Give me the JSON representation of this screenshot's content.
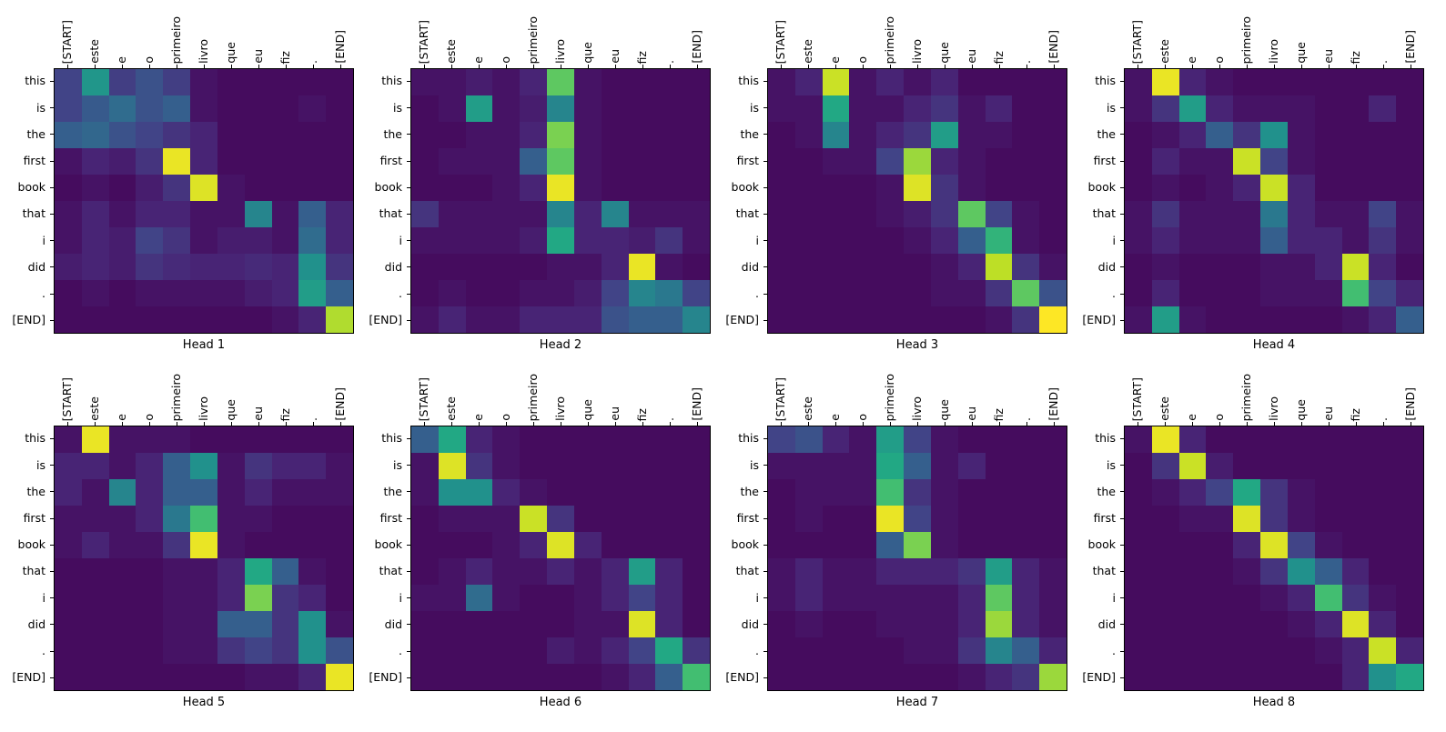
{
  "figure": {
    "x_labels": [
      "[START]",
      "este",
      "e",
      "o",
      "primeiro",
      "livro",
      "que",
      "eu",
      "fiz",
      ".",
      "[END]"
    ],
    "y_labels": [
      "this",
      "is",
      "the",
      "first",
      "book",
      "that",
      "i",
      "did",
      ".",
      "[END]"
    ],
    "colormap": "viridis",
    "colormap_stops": [
      "#440154",
      "#482475",
      "#414487",
      "#355f8d",
      "#2a788e",
      "#21918c",
      "#22a884",
      "#42be71",
      "#7ad151",
      "#bddf26",
      "#fde725"
    ]
  },
  "chart_data": [
    {
      "type": "heatmap",
      "title": "Head 1",
      "vmin": 0,
      "vmax": 1,
      "values": [
        [
          0.2,
          0.52,
          0.18,
          0.25,
          0.18,
          0.05,
          0.03,
          0.03,
          0.03,
          0.03,
          0.03
        ],
        [
          0.2,
          0.28,
          0.35,
          0.25,
          0.3,
          0.05,
          0.03,
          0.03,
          0.03,
          0.05,
          0.03
        ],
        [
          0.3,
          0.33,
          0.25,
          0.2,
          0.15,
          0.1,
          0.03,
          0.03,
          0.03,
          0.03,
          0.03
        ],
        [
          0.05,
          0.1,
          0.08,
          0.15,
          0.97,
          0.1,
          0.03,
          0.03,
          0.03,
          0.03,
          0.03
        ],
        [
          0.03,
          0.05,
          0.03,
          0.08,
          0.15,
          0.95,
          0.05,
          0.03,
          0.03,
          0.03,
          0.03
        ],
        [
          0.05,
          0.1,
          0.05,
          0.1,
          0.1,
          0.05,
          0.05,
          0.45,
          0.05,
          0.3,
          0.1
        ],
        [
          0.05,
          0.1,
          0.08,
          0.2,
          0.15,
          0.05,
          0.08,
          0.08,
          0.05,
          0.35,
          0.1
        ],
        [
          0.08,
          0.1,
          0.08,
          0.15,
          0.12,
          0.1,
          0.1,
          0.12,
          0.1,
          0.5,
          0.15
        ],
        [
          0.03,
          0.05,
          0.03,
          0.05,
          0.05,
          0.05,
          0.05,
          0.08,
          0.1,
          0.55,
          0.3
        ],
        [
          0.03,
          0.03,
          0.03,
          0.03,
          0.03,
          0.03,
          0.03,
          0.03,
          0.05,
          0.1,
          0.88
        ]
      ]
    },
    {
      "type": "heatmap",
      "title": "Head 2",
      "vmin": 0,
      "vmax": 1,
      "values": [
        [
          0.05,
          0.05,
          0.08,
          0.05,
          0.1,
          0.75,
          0.05,
          0.03,
          0.03,
          0.03,
          0.03
        ],
        [
          0.03,
          0.05,
          0.55,
          0.05,
          0.08,
          0.45,
          0.05,
          0.03,
          0.03,
          0.03,
          0.03
        ],
        [
          0.03,
          0.03,
          0.05,
          0.05,
          0.1,
          0.8,
          0.05,
          0.03,
          0.03,
          0.03,
          0.03
        ],
        [
          0.03,
          0.05,
          0.05,
          0.05,
          0.3,
          0.75,
          0.05,
          0.03,
          0.03,
          0.03,
          0.03
        ],
        [
          0.03,
          0.03,
          0.03,
          0.05,
          0.1,
          0.97,
          0.05,
          0.03,
          0.03,
          0.03,
          0.03
        ],
        [
          0.15,
          0.05,
          0.05,
          0.05,
          0.05,
          0.45,
          0.1,
          0.45,
          0.05,
          0.05,
          0.05
        ],
        [
          0.05,
          0.05,
          0.05,
          0.05,
          0.08,
          0.6,
          0.1,
          0.1,
          0.08,
          0.15,
          0.05
        ],
        [
          0.03,
          0.03,
          0.03,
          0.03,
          0.03,
          0.05,
          0.05,
          0.1,
          0.97,
          0.05,
          0.03
        ],
        [
          0.03,
          0.05,
          0.03,
          0.03,
          0.05,
          0.05,
          0.08,
          0.2,
          0.45,
          0.4,
          0.2
        ],
        [
          0.05,
          0.1,
          0.05,
          0.05,
          0.1,
          0.1,
          0.1,
          0.25,
          0.3,
          0.3,
          0.45
        ]
      ]
    },
    {
      "type": "heatmap",
      "title": "Head 3",
      "vmin": 0,
      "vmax": 1,
      "values": [
        [
          0.05,
          0.1,
          0.92,
          0.05,
          0.1,
          0.05,
          0.1,
          0.03,
          0.03,
          0.03,
          0.03
        ],
        [
          0.05,
          0.05,
          0.6,
          0.05,
          0.05,
          0.1,
          0.15,
          0.05,
          0.1,
          0.03,
          0.03
        ],
        [
          0.03,
          0.05,
          0.45,
          0.05,
          0.1,
          0.15,
          0.55,
          0.05,
          0.05,
          0.03,
          0.03
        ],
        [
          0.03,
          0.03,
          0.05,
          0.05,
          0.2,
          0.85,
          0.1,
          0.05,
          0.03,
          0.03,
          0.03
        ],
        [
          0.03,
          0.03,
          0.03,
          0.03,
          0.05,
          0.95,
          0.15,
          0.05,
          0.03,
          0.03,
          0.03
        ],
        [
          0.03,
          0.03,
          0.03,
          0.03,
          0.05,
          0.08,
          0.15,
          0.75,
          0.2,
          0.05,
          0.03
        ],
        [
          0.03,
          0.03,
          0.03,
          0.03,
          0.03,
          0.05,
          0.1,
          0.3,
          0.65,
          0.05,
          0.03
        ],
        [
          0.03,
          0.03,
          0.03,
          0.03,
          0.03,
          0.03,
          0.05,
          0.1,
          0.9,
          0.15,
          0.05
        ],
        [
          0.03,
          0.03,
          0.03,
          0.03,
          0.03,
          0.03,
          0.05,
          0.05,
          0.15,
          0.75,
          0.25
        ],
        [
          0.03,
          0.03,
          0.03,
          0.03,
          0.03,
          0.03,
          0.03,
          0.03,
          0.05,
          0.15,
          1.0
        ]
      ]
    },
    {
      "type": "heatmap",
      "title": "Head 4",
      "vmin": 0,
      "vmax": 1,
      "values": [
        [
          0.05,
          0.97,
          0.1,
          0.05,
          0.03,
          0.03,
          0.03,
          0.03,
          0.03,
          0.03,
          0.03
        ],
        [
          0.05,
          0.15,
          0.55,
          0.1,
          0.05,
          0.05,
          0.05,
          0.03,
          0.03,
          0.1,
          0.03
        ],
        [
          0.03,
          0.05,
          0.1,
          0.3,
          0.15,
          0.5,
          0.05,
          0.03,
          0.03,
          0.03,
          0.03
        ],
        [
          0.03,
          0.1,
          0.05,
          0.05,
          0.92,
          0.2,
          0.05,
          0.03,
          0.03,
          0.03,
          0.03
        ],
        [
          0.03,
          0.05,
          0.03,
          0.05,
          0.1,
          0.92,
          0.1,
          0.03,
          0.03,
          0.03,
          0.03
        ],
        [
          0.05,
          0.15,
          0.05,
          0.05,
          0.05,
          0.4,
          0.1,
          0.05,
          0.05,
          0.2,
          0.05
        ],
        [
          0.05,
          0.1,
          0.05,
          0.05,
          0.05,
          0.3,
          0.1,
          0.1,
          0.05,
          0.15,
          0.05
        ],
        [
          0.03,
          0.05,
          0.03,
          0.03,
          0.03,
          0.05,
          0.05,
          0.1,
          0.92,
          0.1,
          0.03
        ],
        [
          0.03,
          0.1,
          0.03,
          0.03,
          0.03,
          0.05,
          0.05,
          0.05,
          0.7,
          0.2,
          0.1
        ],
        [
          0.05,
          0.55,
          0.05,
          0.03,
          0.03,
          0.03,
          0.03,
          0.03,
          0.05,
          0.1,
          0.3
        ]
      ]
    },
    {
      "type": "heatmap",
      "title": "Head 5",
      "vmin": 0,
      "vmax": 1,
      "values": [
        [
          0.05,
          0.97,
          0.05,
          0.05,
          0.05,
          0.03,
          0.03,
          0.03,
          0.03,
          0.03,
          0.03
        ],
        [
          0.1,
          0.1,
          0.05,
          0.1,
          0.3,
          0.5,
          0.05,
          0.15,
          0.1,
          0.1,
          0.05
        ],
        [
          0.1,
          0.05,
          0.45,
          0.1,
          0.3,
          0.3,
          0.05,
          0.1,
          0.05,
          0.05,
          0.05
        ],
        [
          0.05,
          0.05,
          0.05,
          0.1,
          0.4,
          0.7,
          0.05,
          0.05,
          0.03,
          0.03,
          0.03
        ],
        [
          0.05,
          0.1,
          0.05,
          0.05,
          0.15,
          0.97,
          0.05,
          0.03,
          0.03,
          0.03,
          0.03
        ],
        [
          0.03,
          0.03,
          0.03,
          0.03,
          0.05,
          0.05,
          0.1,
          0.6,
          0.3,
          0.05,
          0.03
        ],
        [
          0.03,
          0.03,
          0.03,
          0.03,
          0.05,
          0.05,
          0.1,
          0.8,
          0.15,
          0.1,
          0.03
        ],
        [
          0.03,
          0.03,
          0.03,
          0.03,
          0.05,
          0.05,
          0.3,
          0.3,
          0.15,
          0.5,
          0.05
        ],
        [
          0.03,
          0.03,
          0.03,
          0.03,
          0.05,
          0.05,
          0.15,
          0.2,
          0.15,
          0.5,
          0.25
        ],
        [
          0.03,
          0.03,
          0.03,
          0.03,
          0.03,
          0.03,
          0.03,
          0.05,
          0.05,
          0.1,
          0.97
        ]
      ]
    },
    {
      "type": "heatmap",
      "title": "Head 6",
      "vmin": 0,
      "vmax": 1,
      "values": [
        [
          0.3,
          0.6,
          0.1,
          0.05,
          0.03,
          0.03,
          0.03,
          0.03,
          0.03,
          0.03,
          0.03
        ],
        [
          0.05,
          0.95,
          0.15,
          0.05,
          0.03,
          0.03,
          0.03,
          0.03,
          0.03,
          0.03,
          0.03
        ],
        [
          0.05,
          0.5,
          0.5,
          0.1,
          0.05,
          0.03,
          0.03,
          0.03,
          0.03,
          0.03,
          0.03
        ],
        [
          0.03,
          0.05,
          0.05,
          0.05,
          0.92,
          0.15,
          0.03,
          0.03,
          0.03,
          0.03,
          0.03
        ],
        [
          0.03,
          0.03,
          0.03,
          0.05,
          0.1,
          0.95,
          0.1,
          0.03,
          0.03,
          0.03,
          0.03
        ],
        [
          0.03,
          0.05,
          0.1,
          0.05,
          0.05,
          0.1,
          0.05,
          0.1,
          0.55,
          0.1,
          0.03
        ],
        [
          0.05,
          0.05,
          0.35,
          0.05,
          0.03,
          0.03,
          0.05,
          0.1,
          0.2,
          0.1,
          0.03
        ],
        [
          0.03,
          0.03,
          0.03,
          0.03,
          0.03,
          0.03,
          0.05,
          0.05,
          0.95,
          0.1,
          0.03
        ],
        [
          0.03,
          0.03,
          0.03,
          0.03,
          0.03,
          0.08,
          0.05,
          0.1,
          0.2,
          0.6,
          0.15
        ],
        [
          0.03,
          0.03,
          0.03,
          0.03,
          0.03,
          0.03,
          0.03,
          0.05,
          0.1,
          0.3,
          0.7
        ]
      ]
    },
    {
      "type": "heatmap",
      "title": "Head 7",
      "vmin": 0,
      "vmax": 1,
      "values": [
        [
          0.2,
          0.25,
          0.1,
          0.05,
          0.55,
          0.2,
          0.05,
          0.03,
          0.03,
          0.03,
          0.03
        ],
        [
          0.05,
          0.05,
          0.05,
          0.05,
          0.6,
          0.3,
          0.05,
          0.1,
          0.03,
          0.03,
          0.03
        ],
        [
          0.03,
          0.05,
          0.05,
          0.05,
          0.7,
          0.15,
          0.05,
          0.03,
          0.03,
          0.03,
          0.03
        ],
        [
          0.03,
          0.05,
          0.03,
          0.03,
          0.97,
          0.2,
          0.05,
          0.03,
          0.03,
          0.03,
          0.03
        ],
        [
          0.03,
          0.03,
          0.03,
          0.03,
          0.3,
          0.8,
          0.05,
          0.03,
          0.03,
          0.03,
          0.03
        ],
        [
          0.05,
          0.1,
          0.05,
          0.05,
          0.1,
          0.1,
          0.1,
          0.15,
          0.55,
          0.1,
          0.05
        ],
        [
          0.05,
          0.1,
          0.05,
          0.05,
          0.05,
          0.05,
          0.05,
          0.1,
          0.75,
          0.1,
          0.05
        ],
        [
          0.03,
          0.05,
          0.03,
          0.03,
          0.05,
          0.05,
          0.05,
          0.1,
          0.85,
          0.1,
          0.05
        ],
        [
          0.03,
          0.03,
          0.03,
          0.03,
          0.03,
          0.05,
          0.05,
          0.15,
          0.45,
          0.3,
          0.1
        ],
        [
          0.03,
          0.03,
          0.03,
          0.03,
          0.03,
          0.03,
          0.03,
          0.05,
          0.1,
          0.15,
          0.85
        ]
      ]
    },
    {
      "type": "heatmap",
      "title": "Head 8",
      "vmin": 0,
      "vmax": 1,
      "values": [
        [
          0.05,
          0.97,
          0.1,
          0.03,
          0.03,
          0.03,
          0.03,
          0.03,
          0.03,
          0.03,
          0.03
        ],
        [
          0.03,
          0.15,
          0.92,
          0.08,
          0.03,
          0.03,
          0.03,
          0.03,
          0.03,
          0.03,
          0.03
        ],
        [
          0.03,
          0.05,
          0.1,
          0.2,
          0.6,
          0.15,
          0.05,
          0.03,
          0.03,
          0.03,
          0.03
        ],
        [
          0.03,
          0.03,
          0.05,
          0.05,
          0.95,
          0.15,
          0.05,
          0.03,
          0.03,
          0.03,
          0.03
        ],
        [
          0.03,
          0.03,
          0.03,
          0.03,
          0.1,
          0.95,
          0.2,
          0.05,
          0.03,
          0.03,
          0.03
        ],
        [
          0.03,
          0.03,
          0.03,
          0.03,
          0.05,
          0.15,
          0.5,
          0.3,
          0.1,
          0.03,
          0.03
        ],
        [
          0.03,
          0.03,
          0.03,
          0.03,
          0.03,
          0.05,
          0.1,
          0.7,
          0.15,
          0.05,
          0.03
        ],
        [
          0.03,
          0.03,
          0.03,
          0.03,
          0.03,
          0.03,
          0.05,
          0.1,
          0.95,
          0.1,
          0.03
        ],
        [
          0.03,
          0.03,
          0.03,
          0.03,
          0.03,
          0.03,
          0.03,
          0.05,
          0.1,
          0.92,
          0.1
        ],
        [
          0.03,
          0.03,
          0.03,
          0.03,
          0.03,
          0.03,
          0.03,
          0.03,
          0.1,
          0.5,
          0.6
        ]
      ]
    }
  ]
}
